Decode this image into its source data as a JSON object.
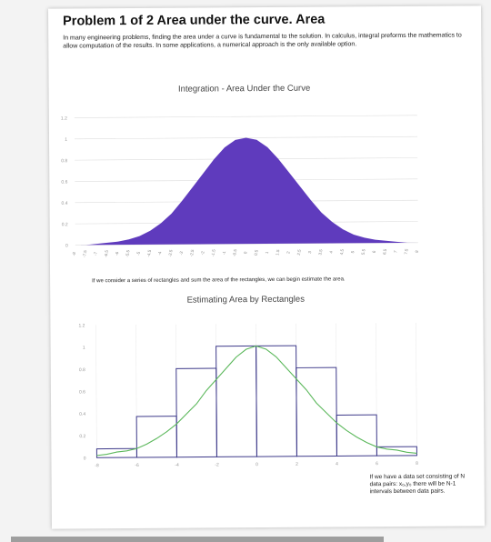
{
  "page": {
    "title": "Problem 1 of 2 Area under the curve. Area",
    "intro": "In many engineering problems, finding the area under a curve is fundamental to the solution. In calculus, integral preforms the mathematics to allow computation of the results. In some applications, a numerical approach is the only available option.",
    "note1": "If we consider a series of rectangles and sum the area of the rectangles, we can begin estimate the area.",
    "note2": "If we have a data set consisting of N data pairs: x₀,y₀ there will be N-1 intervals between data pairs.",
    "colors": {
      "area_fill": "#5f3bbd",
      "curve": "#5cb85c",
      "rect_stroke": "#3e3a8a",
      "grid": "#dddddd"
    }
  },
  "chart_data": [
    {
      "type": "area",
      "title": "Integration - Area Under the Curve",
      "x": [
        "-8",
        "-7.5",
        "-7",
        "-6.5",
        "-6",
        "-5.5",
        "-5",
        "-4.5",
        "-4",
        "-3.5",
        "-3",
        "-2.5",
        "-2",
        "-1.5",
        "-1",
        "-0.5",
        "0",
        "0.5",
        "1",
        "1.5",
        "2",
        "2.5",
        "3",
        "3.5",
        "4",
        "4.5",
        "5",
        "5.5",
        "6",
        "6.5",
        "7",
        "7.5",
        "8"
      ],
      "y": [
        0.0,
        0.0,
        0.01,
        0.02,
        0.03,
        0.05,
        0.08,
        0.13,
        0.2,
        0.29,
        0.41,
        0.54,
        0.67,
        0.8,
        0.91,
        0.98,
        1.0,
        0.98,
        0.91,
        0.8,
        0.67,
        0.54,
        0.41,
        0.29,
        0.2,
        0.13,
        0.08,
        0.05,
        0.03,
        0.02,
        0.01,
        0.0,
        0.0
      ],
      "yticks": [
        "0",
        "0.2",
        "0.4",
        "0.6",
        "0.8",
        "1",
        "1.2"
      ],
      "ylim": [
        0,
        1.2
      ]
    },
    {
      "type": "bar",
      "title": "Estimating Area by Rectangles",
      "rect_edges": [
        -8,
        -6,
        -4,
        -2,
        0,
        2,
        4,
        6,
        8
      ],
      "rect_heights": [
        0.08,
        0.37,
        0.8,
        1.0,
        1.0,
        0.8,
        0.37,
        0.08
      ],
      "curve_x": [
        -8,
        -7.5,
        -7,
        -6.5,
        -6,
        -5.5,
        -5,
        -4.5,
        -4,
        -3.5,
        -3,
        -2.5,
        -2,
        -1.5,
        -1,
        -0.5,
        0,
        0.5,
        1,
        1.5,
        2,
        2.5,
        3,
        3.5,
        4,
        4.5,
        5,
        5.5,
        6,
        6.5,
        7,
        7.5,
        8
      ],
      "curve_y": [
        0.02,
        0.03,
        0.05,
        0.06,
        0.08,
        0.12,
        0.17,
        0.23,
        0.3,
        0.39,
        0.48,
        0.6,
        0.7,
        0.8,
        0.9,
        0.97,
        1.0,
        0.97,
        0.9,
        0.8,
        0.7,
        0.6,
        0.48,
        0.39,
        0.3,
        0.23,
        0.17,
        0.12,
        0.08,
        0.06,
        0.05,
        0.03,
        0.02
      ],
      "xticks": [
        "-8",
        "-6",
        "-4",
        "-2",
        "0",
        "2",
        "4",
        "6",
        "8"
      ],
      "yticks": [
        "0",
        "0.2",
        "0.4",
        "0.6",
        "0.8",
        "1",
        "1.2"
      ],
      "xlim": [
        -8,
        8
      ],
      "ylim": [
        0,
        1.2
      ]
    }
  ]
}
